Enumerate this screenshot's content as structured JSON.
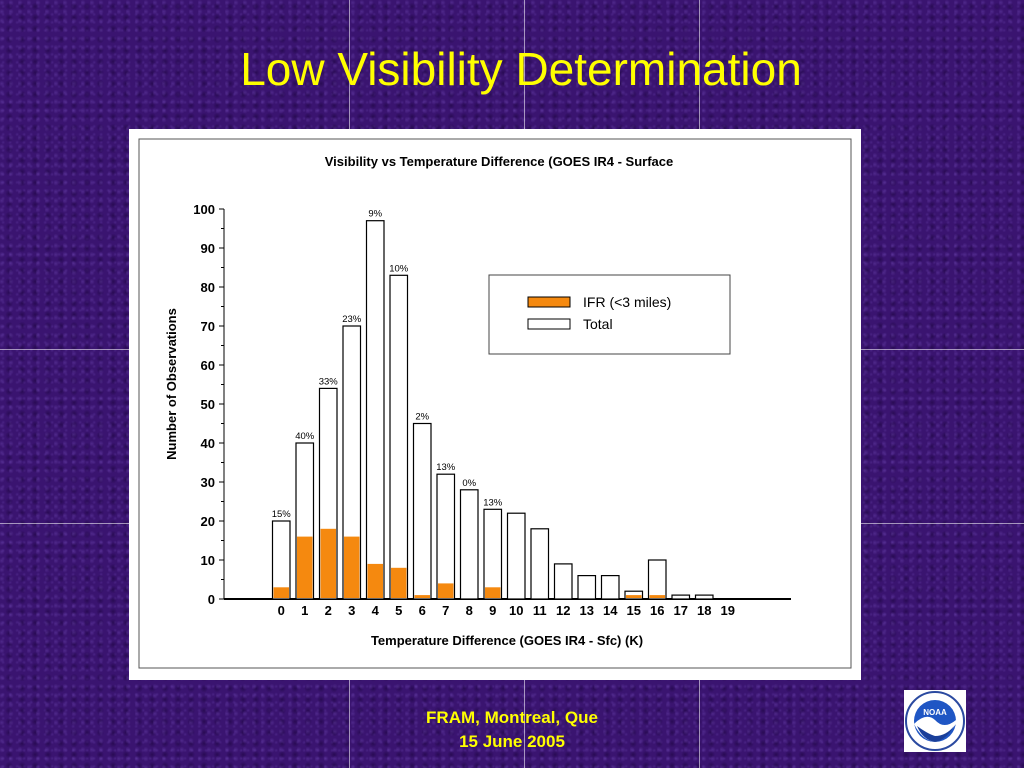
{
  "slide": {
    "title": "Low Visibility Determination",
    "footer_line1": "FRAM, Montreal, Que",
    "footer_line2": "15 June 2005",
    "logo_text": "NOAA",
    "background_color": "#3a1470",
    "title_color": "#ffff00"
  },
  "chart_data": {
    "type": "bar",
    "title": "Visibility vs Temperature Difference (GOES IR4 - Surface",
    "xlabel": "Temperature Difference (GOES IR4 - Sfc) (K)",
    "ylabel": "Number of Observations",
    "ylim": [
      0,
      100
    ],
    "yticks": [
      0,
      10,
      20,
      30,
      40,
      50,
      60,
      70,
      80,
      90,
      100
    ],
    "categories": [
      "0",
      "1",
      "2",
      "3",
      "4",
      "5",
      "6",
      "7",
      "8",
      "9",
      "10",
      "11",
      "12",
      "13",
      "14",
      "15",
      "16",
      "17",
      "18",
      "19"
    ],
    "series": [
      {
        "name": "IFR (<3 miles)",
        "color": "#f5890f",
        "values": [
          3,
          16,
          18,
          16,
          9,
          8,
          1,
          4,
          0,
          3,
          0,
          0,
          0,
          0,
          0,
          1,
          1,
          0,
          0,
          0
        ]
      },
      {
        "name": "Total",
        "color": "#ffffff",
        "values": [
          20,
          40,
          54,
          70,
          97,
          83,
          45,
          32,
          28,
          23,
          22,
          18,
          9,
          6,
          6,
          2,
          10,
          1,
          1,
          0
        ]
      }
    ],
    "bar_labels": [
      "15%",
      "40%",
      "33%",
      "23%",
      "9%",
      "10%",
      "2%",
      "13%",
      "0%",
      "13%",
      "",
      "",
      "",
      "",
      "",
      "",
      "",
      "",
      "",
      ""
    ],
    "legend_position": "upper-right",
    "grid": false
  }
}
